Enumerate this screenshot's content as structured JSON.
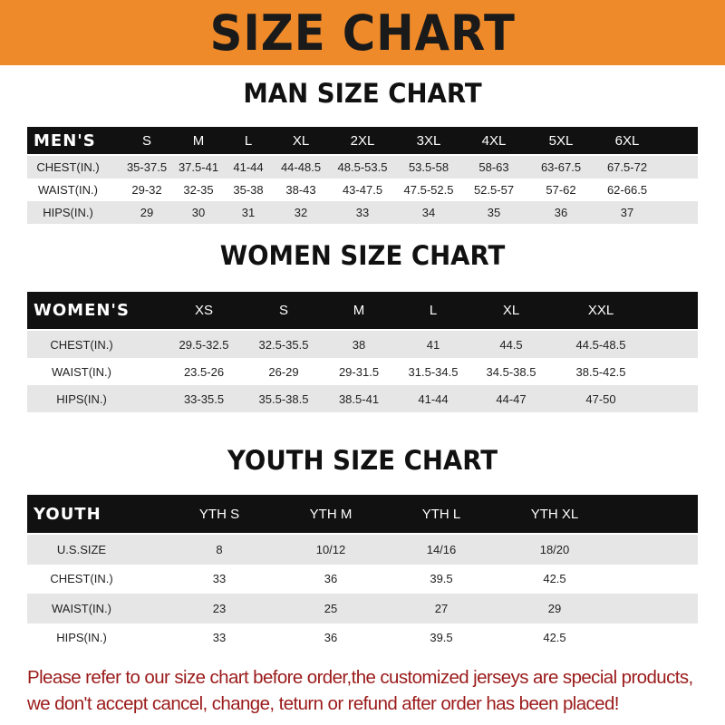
{
  "header": {
    "title": "SIZE CHART"
  },
  "tables": [
    {
      "title": "MAN SIZE CHART",
      "header": [
        "MEN'S",
        "S",
        "M",
        "L",
        "XL",
        "2XL",
        "3XL",
        "4XL",
        "5XL",
        "6XL"
      ],
      "rows": [
        [
          "CHEST(IN.)",
          "35-37.5",
          "37.5-41",
          "41-44",
          "44-48.5",
          "48.5-53.5",
          "53.5-58",
          "58-63",
          "63-67.5",
          "67.5-72"
        ],
        [
          "WAIST(IN.)",
          "29-32",
          "32-35",
          "35-38",
          "38-43",
          "43-47.5",
          "47.5-52.5",
          "52.5-57",
          "57-62",
          "62-66.5"
        ],
        [
          "HIPS(IN.)",
          "29",
          "30",
          "31",
          "32",
          "33",
          "34",
          "35",
          "36",
          "37"
        ]
      ]
    },
    {
      "title": "WOMEN SIZE CHART",
      "header": [
        "WOMEN'S",
        "XS",
        "S",
        "M",
        "L",
        "XL",
        "XXL"
      ],
      "rows": [
        [
          "CHEST(IN.)",
          "29.5-32.5",
          "32.5-35.5",
          "38",
          "41",
          "44.5",
          "44.5-48.5"
        ],
        [
          "WAIST(IN.)",
          "23.5-26",
          "26-29",
          "29-31.5",
          "31.5-34.5",
          "34.5-38.5",
          "38.5-42.5"
        ],
        [
          "HIPS(IN.)",
          "33-35.5",
          "35.5-38.5",
          "38.5-41",
          "41-44",
          "44-47",
          "47-50"
        ]
      ]
    },
    {
      "title": "YOUTH SIZE CHART",
      "header": [
        "YOUTH",
        "YTH S",
        "YTH M",
        "YTH L",
        "YTH XL"
      ],
      "rows": [
        [
          "U.S.SIZE",
          "8",
          "10/12",
          "14/16",
          "18/20"
        ],
        [
          "CHEST(IN.)",
          "33",
          "36",
          "39.5",
          "42.5"
        ],
        [
          "WAIST(IN.)",
          "23",
          "25",
          "27",
          "29"
        ],
        [
          "HIPS(IN.)",
          "33",
          "36",
          "39.5",
          "42.5"
        ]
      ]
    }
  ],
  "footer": {
    "line1": "Please refer to our size chart before order,the customized jerseys are special products,",
    "line2": "we don't accept cancel, change, teturn or refund after order has been placed!"
  },
  "colors": {
    "banner": "#ef8a2a",
    "table_header": "#111111",
    "row_alt": "#e6e6e6",
    "note": "#9b1b1b"
  }
}
